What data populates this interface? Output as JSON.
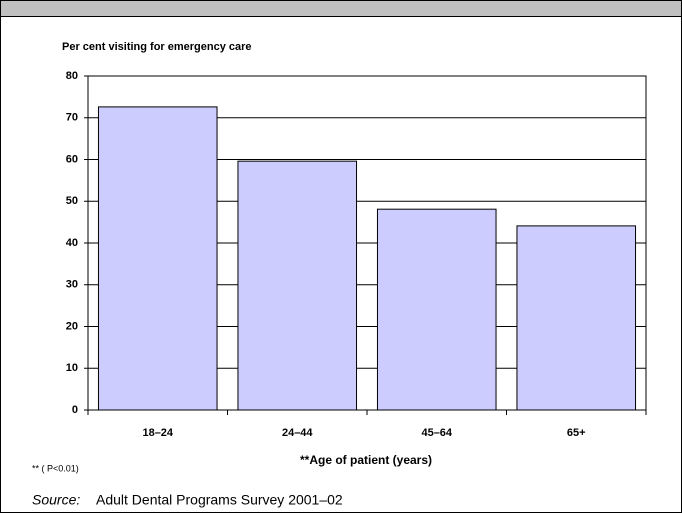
{
  "chart_data": {
    "type": "bar",
    "title": "Per cent visiting for emergency care",
    "x_label": "**Age of patient (years)",
    "footnote": "** ( P<0.01)",
    "source_label": "Source:",
    "source": "Adult Dental Programs Survey 2001–02",
    "categories": [
      "18–24",
      "24–44",
      "45–64",
      "65+"
    ],
    "values": [
      72.6,
      59.6,
      48.1,
      44.1
    ],
    "color": "#ccccff",
    "ylim": [
      0,
      80
    ],
    "yticks": [
      0,
      10,
      20,
      30,
      40,
      50,
      60,
      70,
      80
    ],
    "grid": true
  }
}
